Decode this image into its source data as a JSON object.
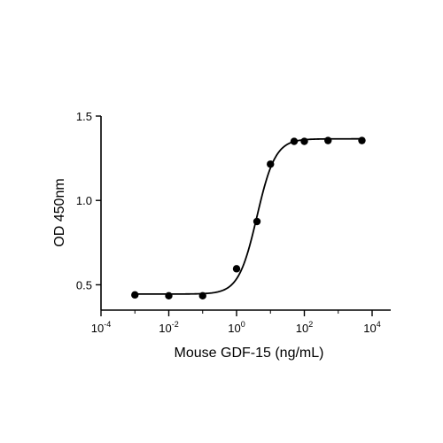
{
  "chart_data": {
    "type": "scatter",
    "xlabel": "Mouse GDF-15 (ng/mL)",
    "ylabel": "OD 450nm",
    "x_scale": "log10",
    "xlim": [
      0.0001,
      10000
    ],
    "ylim": [
      0.35,
      1.5
    ],
    "x_ticks": [
      {
        "value": 0.0001,
        "base": "10",
        "exp": "-4"
      },
      {
        "value": 0.01,
        "base": "10",
        "exp": "-2"
      },
      {
        "value": 1,
        "base": "10",
        "exp": "0"
      },
      {
        "value": 100,
        "base": "10",
        "exp": "2"
      },
      {
        "value": 10000,
        "base": "10",
        "exp": "4"
      }
    ],
    "y_ticks": [
      {
        "value": 0.5,
        "label": "0.5"
      },
      {
        "value": 1.0,
        "label": "1.0"
      },
      {
        "value": 1.5,
        "label": "1.5"
      }
    ],
    "series": [
      {
        "points": [
          {
            "x": 0.001,
            "y": 0.44
          },
          {
            "x": 0.01,
            "y": 0.435
          },
          {
            "x": 0.1,
            "y": 0.435
          },
          {
            "x": 1.0,
            "y": 0.595
          },
          {
            "x": 4.0,
            "y": 0.875
          },
          {
            "x": 10.0,
            "y": 1.215
          },
          {
            "x": 50.0,
            "y": 1.35
          },
          {
            "x": 100.0,
            "y": 1.35
          },
          {
            "x": 500.0,
            "y": 1.355
          },
          {
            "x": 5000.0,
            "y": 1.355
          }
        ]
      }
    ],
    "fit_curve": {
      "model": "4PL",
      "bottom": 0.445,
      "top": 1.365,
      "ec50": 4.0,
      "hill": 1.6
    },
    "grid": false
  }
}
